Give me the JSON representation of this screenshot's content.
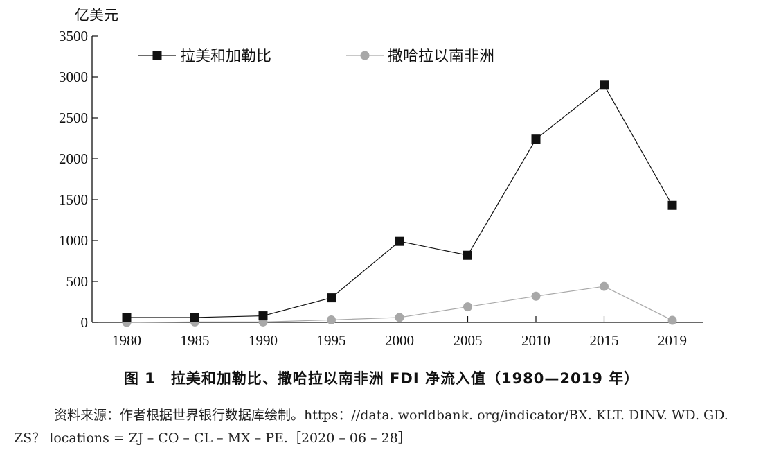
{
  "chart_data": {
    "type": "line",
    "ylabel": "亿美元",
    "categories": [
      "1980",
      "1985",
      "1990",
      "1995",
      "2000",
      "2005",
      "2010",
      "2015",
      "2019"
    ],
    "yticks": [
      "0",
      "500",
      "1000",
      "1500",
      "2000",
      "2500",
      "3000",
      "3500"
    ],
    "ylim": [
      0,
      3500
    ],
    "grid": false,
    "legend_position": "top-left",
    "series": [
      {
        "name": "拉美和加勒比",
        "values": [
          60,
          60,
          80,
          300,
          990,
          820,
          2240,
          2900,
          1430
        ],
        "color": "#111111",
        "marker": "square"
      },
      {
        "name": "撒哈拉以南非洲",
        "values": [
          0,
          5,
          5,
          30,
          60,
          190,
          320,
          440,
          25
        ],
        "color": "#a8a8a8",
        "marker": "circle"
      }
    ]
  },
  "caption": "图 1　拉美和加勒比、撒哈拉以南非洲 FDI 净流入值（1980—2019 年）",
  "source": "资料来源：作者根据世界银行数据库绘制。https：//data. worldbank. org/indicator/BX. KLT. DINV. WD. GD. ZS？ locations = ZJ – CO – CL – MX – PE.［2020 – 06 – 28］"
}
